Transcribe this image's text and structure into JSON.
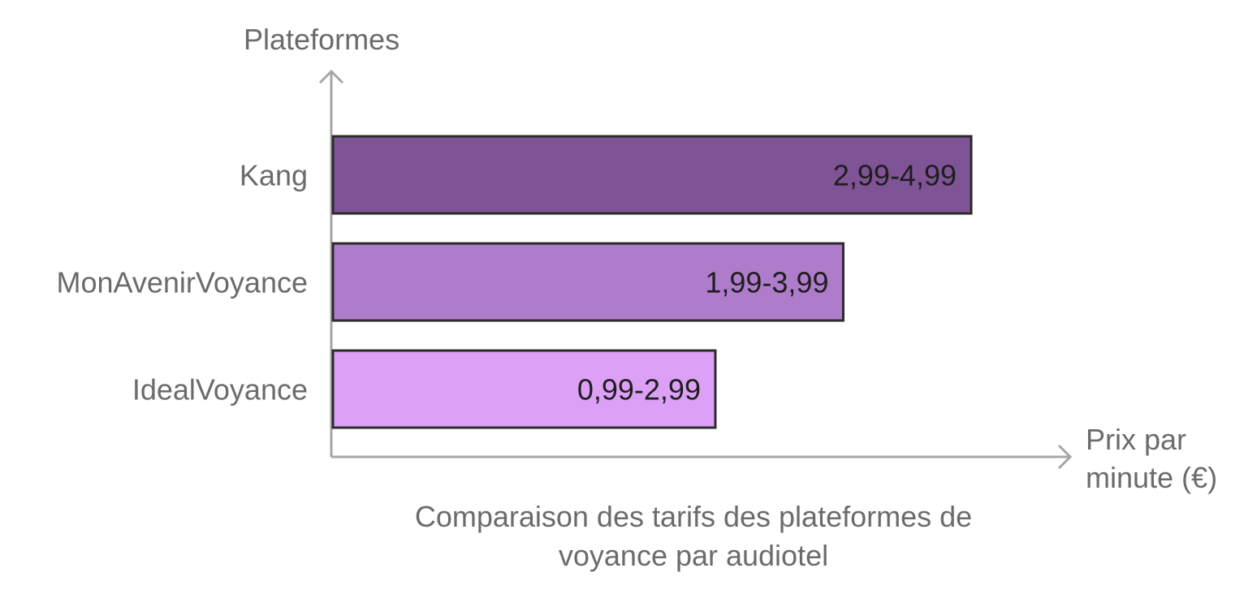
{
  "chart_data": {
    "type": "bar",
    "orientation": "horizontal",
    "title": "Comparaison des tarifs des plateformes de voyance par audiotel",
    "title_lines": [
      "Comparaison des tarifs des plateformes de",
      "voyance par audiotel"
    ],
    "ylabel": "Plateformes",
    "xlabel_lines": [
      "Prix par",
      "minute (€)"
    ],
    "categories": [
      "Kang",
      "MonAvenirVoyance",
      "IdealVoyance"
    ],
    "values": [
      4.99,
      3.99,
      2.99
    ],
    "range_labels": [
      "2,99-4,99",
      "1,99-3,99",
      "0,99-2,99"
    ],
    "colors": [
      "#7f5496",
      "#af7bcb",
      "#dca0f6"
    ],
    "grid": false,
    "legend": "none"
  }
}
